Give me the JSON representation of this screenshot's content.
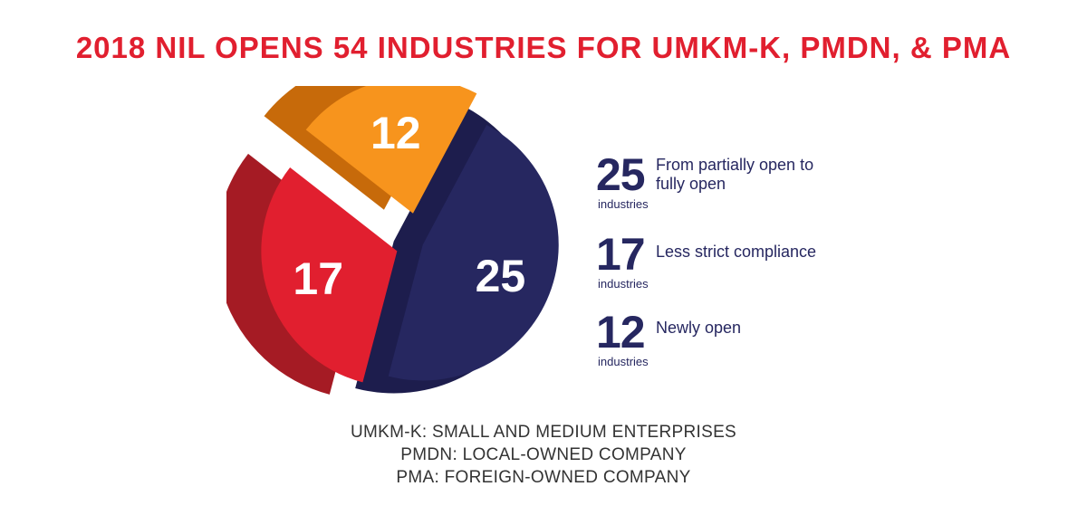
{
  "title": "2018 NIL OPENS 54 INDUSTRIES FOR UMKM-K, PMDN, & PMA",
  "chart_data": {
    "type": "pie",
    "title": "2018 NIL OPENS 54 INDUSTRIES FOR UMKM-K, PMDN, & PMA",
    "total": 54,
    "slices": [
      {
        "label": "From partially open to fully open",
        "value": 25,
        "unit": "industries",
        "color": "#262760"
      },
      {
        "label": "Less strict compliance",
        "value": 17,
        "unit": "industries",
        "color": "#e11f2f"
      },
      {
        "label": "Newly open",
        "value": 12,
        "unit": "industries",
        "color": "#f7941d"
      }
    ]
  },
  "legend": [
    {
      "value": "25",
      "unit": "industries",
      "desc": "From partially open to fully open"
    },
    {
      "value": "17",
      "unit": "industries",
      "desc": "Less strict compliance"
    },
    {
      "value": "12",
      "unit": "industries",
      "desc": "Newly open"
    }
  ],
  "footnotes": [
    "UMKM-K: SMALL AND MEDIUM ENTERPRISES",
    "PMDN: LOCAL-OWNED COMPANY",
    "PMA: FOREIGN-OWNED COMPANY"
  ]
}
